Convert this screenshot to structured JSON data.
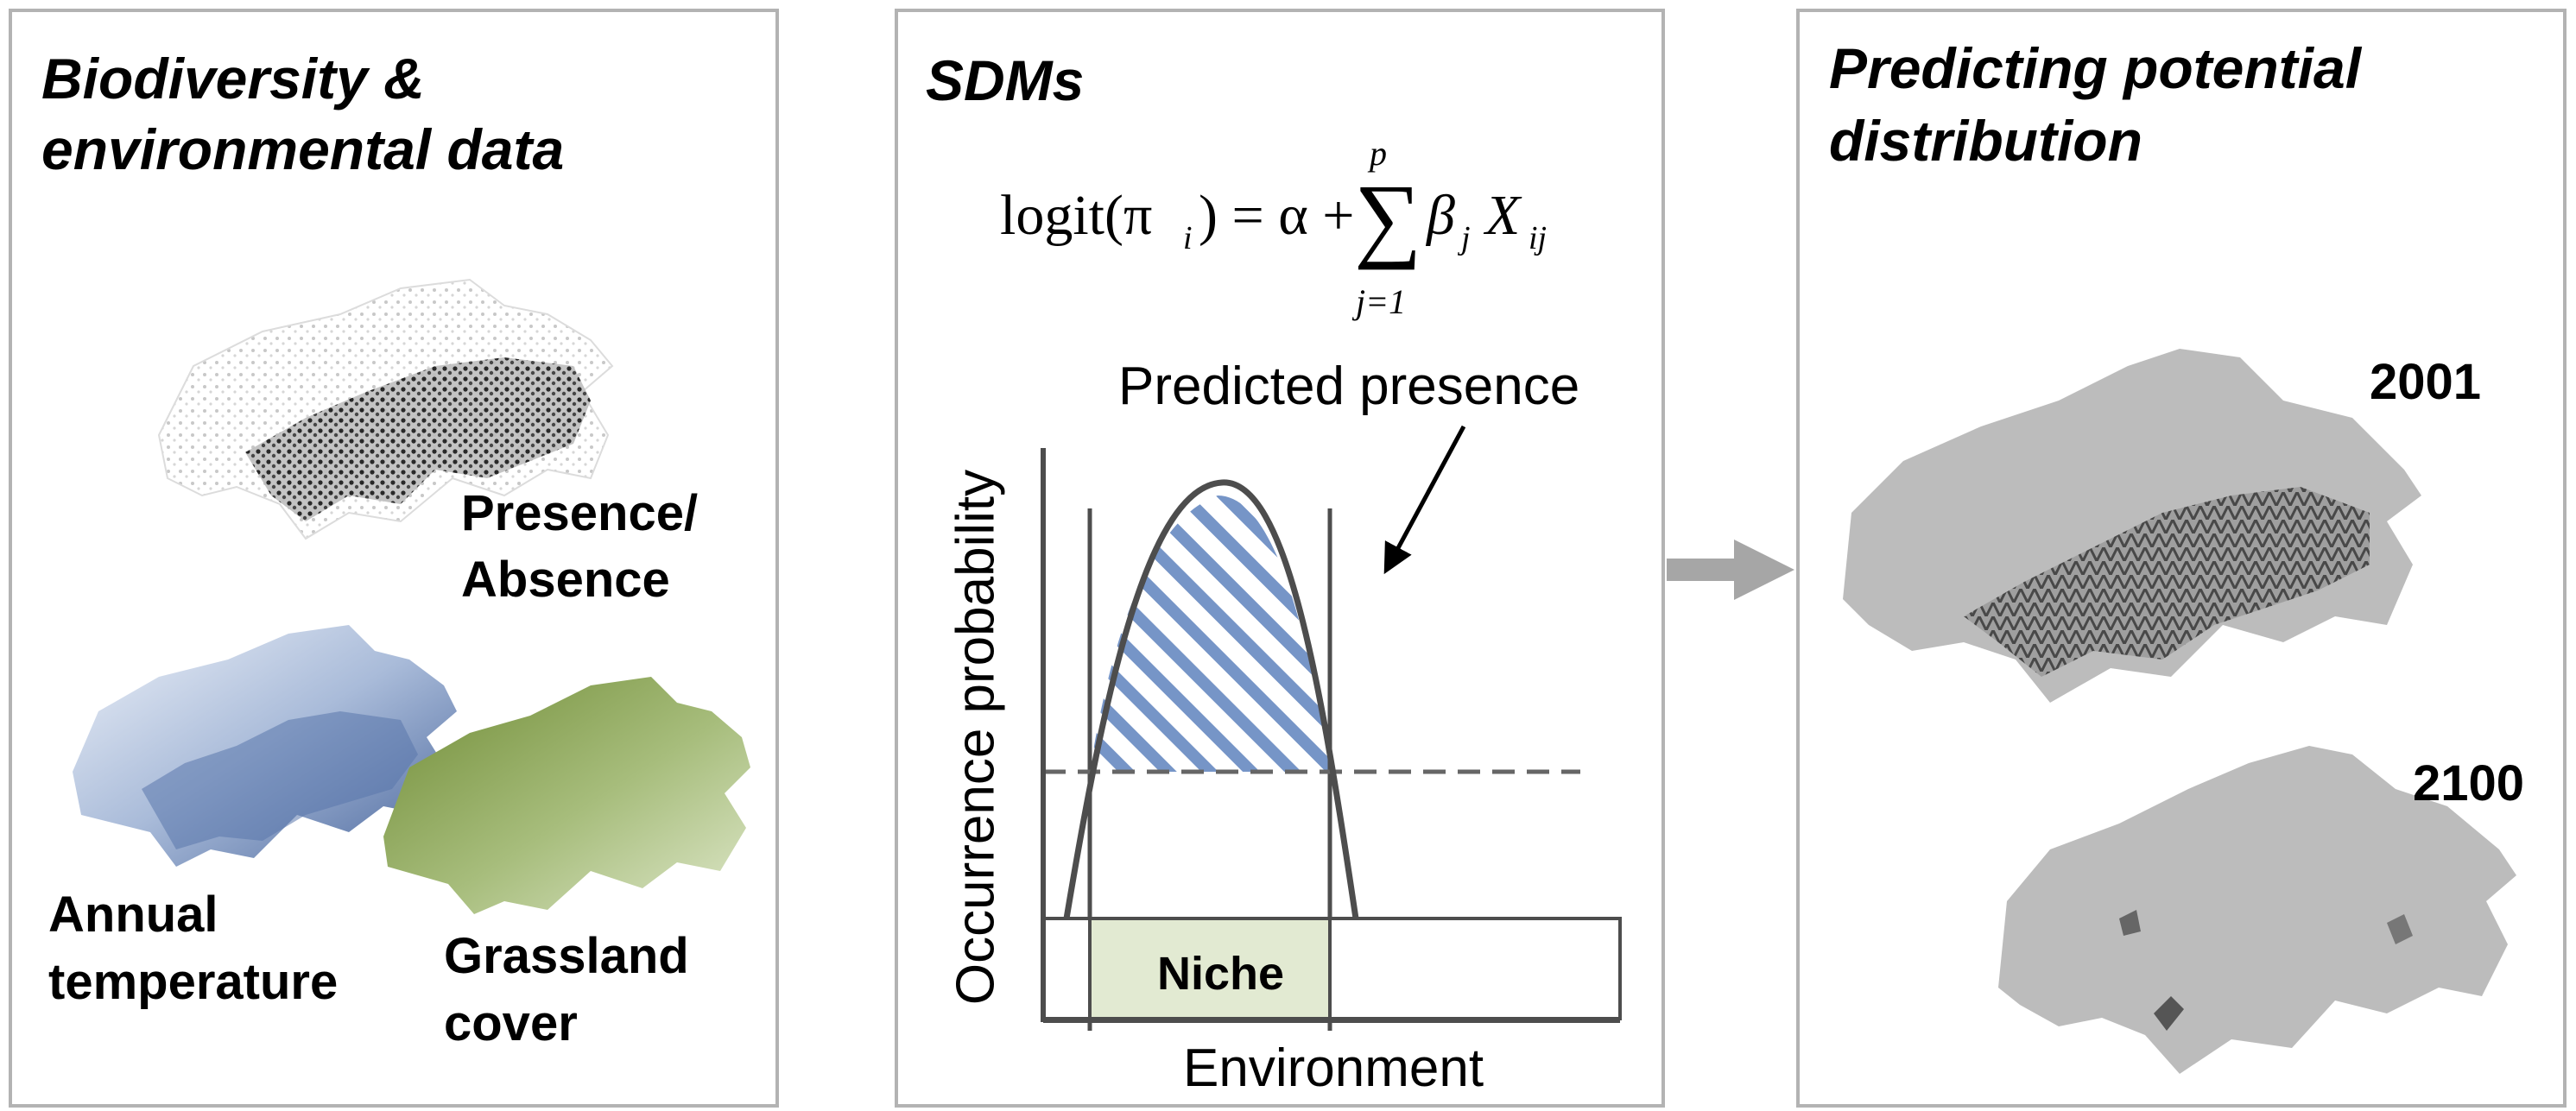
{
  "panels": {
    "left": {
      "title_line1": "Biodiversity &",
      "title_line2": "environmental data",
      "labels": {
        "presence_line1": "Presence/",
        "presence_line2": "Absence",
        "temperature_line1": "Annual",
        "temperature_line2": "temperature",
        "grassland_line1": "Grassland",
        "grassland_line2": "cover"
      }
    },
    "middle": {
      "title": "SDMs",
      "formula": {
        "lhs": "logit(π",
        "lhs_sub": "i",
        "lhs_close": ") = α +",
        "sum_sign": "∑",
        "sum_upper": "p",
        "sum_lower": "j=1",
        "beta": "β",
        "beta_sub": "j",
        "x": "X",
        "x_sub": "ij"
      },
      "annotation": "Predicted presence",
      "niche_label": "Niche",
      "xlabel": "Environment",
      "ylabel": "Occurrence probability"
    },
    "right": {
      "title_line1": "Predicting potential",
      "title_line2": "distribution",
      "years": [
        "2001",
        "2100"
      ]
    }
  },
  "colors": {
    "border": "#b3b3b3",
    "hatch": "#6f8fc4",
    "curve": "#4d4d4d",
    "niche_fill": "#e2ead2",
    "arrow": "#a6a6a6",
    "map_grey": "#bcbcbc",
    "temp_blue": "#6f8bb8",
    "grass_green": "#8fa85a"
  }
}
